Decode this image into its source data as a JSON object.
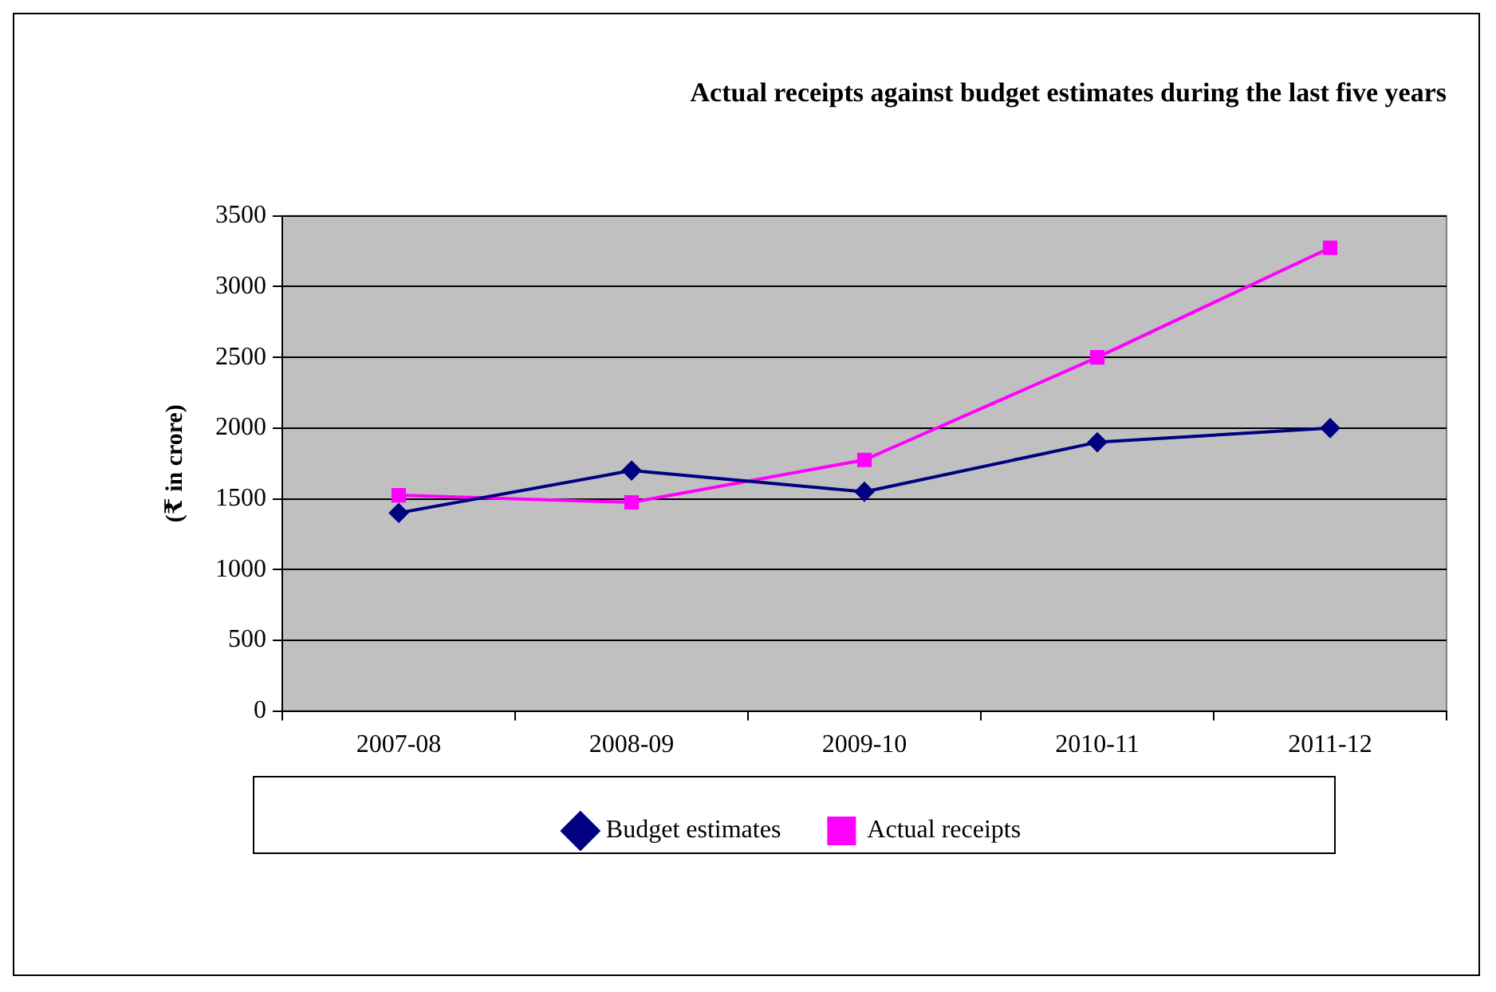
{
  "chart_data": {
    "type": "line",
    "title": "Actual receipts against budget estimates during the last five years",
    "ylabel": "(₹ in crore)",
    "categories": [
      "2007-08",
      "2008-09",
      "2009-10",
      "2010-11",
      "2011-12"
    ],
    "series": [
      {
        "name": "Budget estimates",
        "color": "#000080",
        "marker": "diamond",
        "values": [
          1400,
          1700,
          1550,
          1900,
          2000
        ]
      },
      {
        "name": "Actual receipts",
        "color": "#ff00ff",
        "marker": "square",
        "values": [
          1525,
          1475,
          1775,
          2500,
          3275
        ]
      }
    ],
    "ylim": [
      0,
      3500
    ],
    "yticks": [
      0,
      500,
      1000,
      1500,
      2000,
      2500,
      3000,
      3500
    ],
    "grid": "y",
    "legend": "bottom",
    "line_style": "solid"
  }
}
